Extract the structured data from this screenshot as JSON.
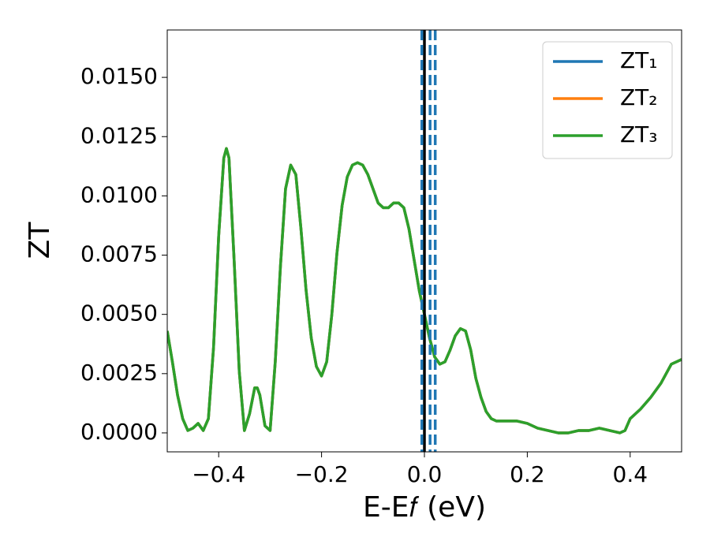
{
  "chart_data": {
    "type": "line",
    "xlabel": "E-E𝑓 (eV)",
    "ylabel": "ZT",
    "x": [
      -0.5,
      -0.49,
      -0.48,
      -0.47,
      -0.46,
      -0.45,
      -0.44,
      -0.43,
      -0.42,
      -0.41,
      -0.4,
      -0.39,
      -0.385,
      -0.38,
      -0.37,
      -0.36,
      -0.35,
      -0.34,
      -0.33,
      -0.325,
      -0.32,
      -0.31,
      -0.3,
      -0.29,
      -0.28,
      -0.27,
      -0.26,
      -0.25,
      -0.24,
      -0.23,
      -0.22,
      -0.21,
      -0.2,
      -0.19,
      -0.18,
      -0.17,
      -0.16,
      -0.15,
      -0.14,
      -0.13,
      -0.12,
      -0.11,
      -0.1,
      -0.09,
      -0.08,
      -0.07,
      -0.06,
      -0.05,
      -0.04,
      -0.03,
      -0.02,
      -0.01,
      0,
      0.01,
      0.02,
      0.03,
      0.04,
      0.05,
      0.06,
      0.07,
      0.08,
      0.09,
      0.1,
      0.11,
      0.12,
      0.13,
      0.14,
      0.16,
      0.18,
      0.2,
      0.22,
      0.24,
      0.26,
      0.28,
      0.3,
      0.32,
      0.34,
      0.36,
      0.38,
      0.39,
      0.4,
      0.42,
      0.44,
      0.46,
      0.48,
      0.5
    ],
    "series": [
      {
        "name": "ZT₁",
        "color": "#1f77b4",
        "values": [
          0.0043,
          0.003,
          0.0016,
          0.0006,
          0.0001,
          0.0002,
          0.0004,
          0.0001,
          0.0006,
          0.0036,
          0.0083,
          0.0116,
          0.012,
          0.0116,
          0.0073,
          0.0026,
          0.0001,
          0.0008,
          0.0019,
          0.0019,
          0.0016,
          0.0003,
          0.0001,
          0.003,
          0.007,
          0.0103,
          0.0113,
          0.0109,
          0.0086,
          0.006,
          0.004,
          0.0028,
          0.0024,
          0.003,
          0.005,
          0.0076,
          0.0096,
          0.0108,
          0.0113,
          0.0114,
          0.0113,
          0.0109,
          0.0103,
          0.0097,
          0.0095,
          0.0095,
          0.0097,
          0.0097,
          0.0095,
          0.0086,
          0.0073,
          0.006,
          0.005,
          0.004,
          0.0032,
          0.0029,
          0.003,
          0.0035,
          0.0041,
          0.0044,
          0.0043,
          0.0035,
          0.0023,
          0.0015,
          0.0009,
          0.0006,
          0.0005,
          0.0005,
          0.0005,
          0.0004,
          0.0002,
          0.0001,
          0,
          0,
          0.0001,
          0.0001,
          0.0002,
          0.0001,
          0,
          0.0001,
          0.0006,
          0.001,
          0.0015,
          0.0021,
          0.0029,
          0.0031
        ]
      },
      {
        "name": "ZT₂",
        "color": "#ff7f0e",
        "values": [
          0.0043,
          0.003,
          0.0016,
          0.0006,
          0.0001,
          0.0002,
          0.0004,
          0.0001,
          0.0006,
          0.0036,
          0.0083,
          0.0116,
          0.012,
          0.0116,
          0.0073,
          0.0026,
          0.0001,
          0.0008,
          0.0019,
          0.0019,
          0.0016,
          0.0003,
          0.0001,
          0.003,
          0.007,
          0.0103,
          0.0113,
          0.0109,
          0.0086,
          0.006,
          0.004,
          0.0028,
          0.0024,
          0.003,
          0.005,
          0.0076,
          0.0096,
          0.0108,
          0.0113,
          0.0114,
          0.0113,
          0.0109,
          0.0103,
          0.0097,
          0.0095,
          0.0095,
          0.0097,
          0.0097,
          0.0095,
          0.0086,
          0.0073,
          0.006,
          0.005,
          0.004,
          0.0032,
          0.0029,
          0.003,
          0.0035,
          0.0041,
          0.0044,
          0.0043,
          0.0035,
          0.0023,
          0.0015,
          0.0009,
          0.0006,
          0.0005,
          0.0005,
          0.0005,
          0.0004,
          0.0002,
          0.0001,
          0,
          0,
          0.0001,
          0.0001,
          0.0002,
          0.0001,
          0,
          0.0001,
          0.0006,
          0.001,
          0.0015,
          0.0021,
          0.0029,
          0.0031
        ]
      },
      {
        "name": "ZT₃",
        "color": "#2ca02c",
        "values": [
          0.0043,
          0.003,
          0.0016,
          0.0006,
          0.0001,
          0.0002,
          0.0004,
          0.0001,
          0.0006,
          0.0036,
          0.0083,
          0.0116,
          0.012,
          0.0116,
          0.0073,
          0.0026,
          0.0001,
          0.0008,
          0.0019,
          0.0019,
          0.0016,
          0.0003,
          0.0001,
          0.003,
          0.007,
          0.0103,
          0.0113,
          0.0109,
          0.0086,
          0.006,
          0.004,
          0.0028,
          0.0024,
          0.003,
          0.005,
          0.0076,
          0.0096,
          0.0108,
          0.0113,
          0.0114,
          0.0113,
          0.0109,
          0.0103,
          0.0097,
          0.0095,
          0.0095,
          0.0097,
          0.0097,
          0.0095,
          0.0086,
          0.0073,
          0.006,
          0.005,
          0.004,
          0.0032,
          0.0029,
          0.003,
          0.0035,
          0.0041,
          0.0044,
          0.0043,
          0.0035,
          0.0023,
          0.0015,
          0.0009,
          0.0006,
          0.0005,
          0.0005,
          0.0005,
          0.0004,
          0.0002,
          0.0001,
          0,
          0,
          0.0001,
          0.0001,
          0.0002,
          0.0001,
          0,
          0.0001,
          0.0006,
          0.001,
          0.0015,
          0.0021,
          0.0029,
          0.0031
        ]
      }
    ],
    "vlines": [
      {
        "x": 0,
        "color": "#000000",
        "style": "solid"
      },
      {
        "x": -0.005,
        "color": "#1f77b4",
        "style": "dashed"
      },
      {
        "x": 0.011,
        "color": "#1f77b4",
        "style": "dashed"
      },
      {
        "x": 0.021,
        "color": "#1f77b4",
        "style": "dashed"
      }
    ],
    "xlim": [
      -0.5,
      0.5
    ],
    "xticks": [
      {
        "value": -0.4,
        "label": "−0.4"
      },
      {
        "value": -0.2,
        "label": "−0.2"
      },
      {
        "value": 0,
        "label": "0.0"
      },
      0.2,
      0.4
    ],
    "ylim": [
      -0.0008,
      0.017
    ],
    "yticks": [
      {
        "value": 0,
        "label": "0.0000"
      },
      {
        "value": 0.0025,
        "label": "0.0025"
      },
      {
        "value": 0.005,
        "label": "0.0050"
      },
      {
        "value": 0.0075,
        "label": "0.0075"
      },
      {
        "value": 0.01,
        "label": "0.0100"
      },
      {
        "value": 0.0125,
        "label": "0.0125"
      },
      {
        "value": 0.015,
        "label": "0.0150"
      }
    ],
    "legend": "upper right"
  }
}
